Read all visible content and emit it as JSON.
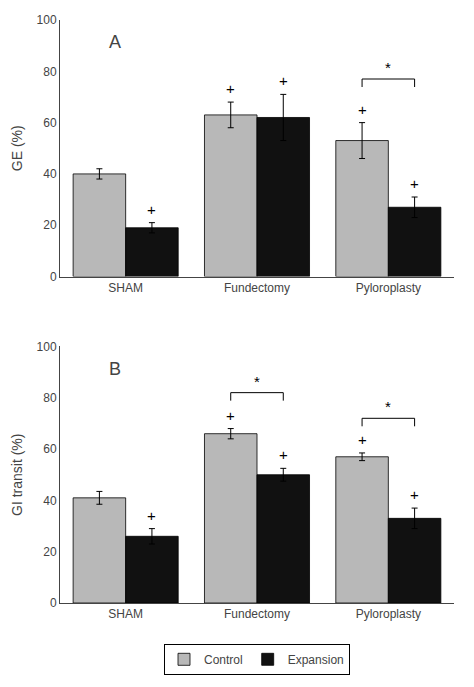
{
  "chart_data": [
    {
      "type": "bar",
      "title": "A",
      "ylabel": "GE (%)",
      "categories": [
        "SHAM",
        "Fundectomy",
        "Pyloroplasty"
      ],
      "series": [
        {
          "name": "Control",
          "color": "#b8b8b8",
          "values": [
            40,
            63,
            53
          ],
          "errors": [
            2,
            5,
            7
          ]
        },
        {
          "name": "Expansion",
          "color": "#111111",
          "values": [
            19,
            62,
            27
          ],
          "errors": [
            2,
            9,
            4
          ]
        }
      ],
      "ylim": [
        0,
        100
      ],
      "yticks": [
        0,
        20,
        40,
        60,
        80,
        100
      ],
      "grid": false,
      "annotations": [
        {
          "text": "+",
          "category": "Fundectomy",
          "series": "Control"
        },
        {
          "text": "+",
          "category": "Pyloroplasty",
          "series": "Control"
        },
        {
          "text": "+",
          "category": "SHAM",
          "series": "Expansion"
        },
        {
          "text": "+",
          "category": "Fundectomy",
          "series": "Expansion"
        },
        {
          "text": "+",
          "category": "Pyloroplasty",
          "series": "Expansion"
        },
        {
          "text": "*",
          "category": "Pyloroplasty",
          "y": 77
        }
      ]
    },
    {
      "type": "bar",
      "title": "B",
      "ylabel": "GI transit (%)",
      "categories": [
        "SHAM",
        "Fundectomy",
        "Pyloroplasty"
      ],
      "series": [
        {
          "name": "Control",
          "color": "#b8b8b8",
          "values": [
            41,
            66,
            57
          ],
          "errors": [
            2.5,
            2,
            1.5
          ]
        },
        {
          "name": "Expansion",
          "color": "#111111",
          "values": [
            26,
            50,
            33
          ],
          "errors": [
            3,
            2.5,
            4
          ]
        }
      ],
      "ylim": [
        0,
        100
      ],
      "yticks": [
        0,
        20,
        40,
        60,
        80,
        100
      ],
      "grid": false,
      "legend": "bottom",
      "annotations": [
        {
          "text": "+",
          "category": "Fundectomy",
          "series": "Control"
        },
        {
          "text": "+",
          "category": "Pyloroplasty",
          "series": "Control"
        },
        {
          "text": "+",
          "category": "SHAM",
          "series": "Expansion"
        },
        {
          "text": "+",
          "category": "Fundectomy",
          "series": "Expansion"
        },
        {
          "text": "+",
          "category": "Pyloroplasty",
          "series": "Expansion"
        },
        {
          "text": "*",
          "category": "Fundectomy",
          "y": 82
        },
        {
          "text": "*",
          "category": "Pyloroplasty",
          "y": 72
        }
      ]
    }
  ]
}
